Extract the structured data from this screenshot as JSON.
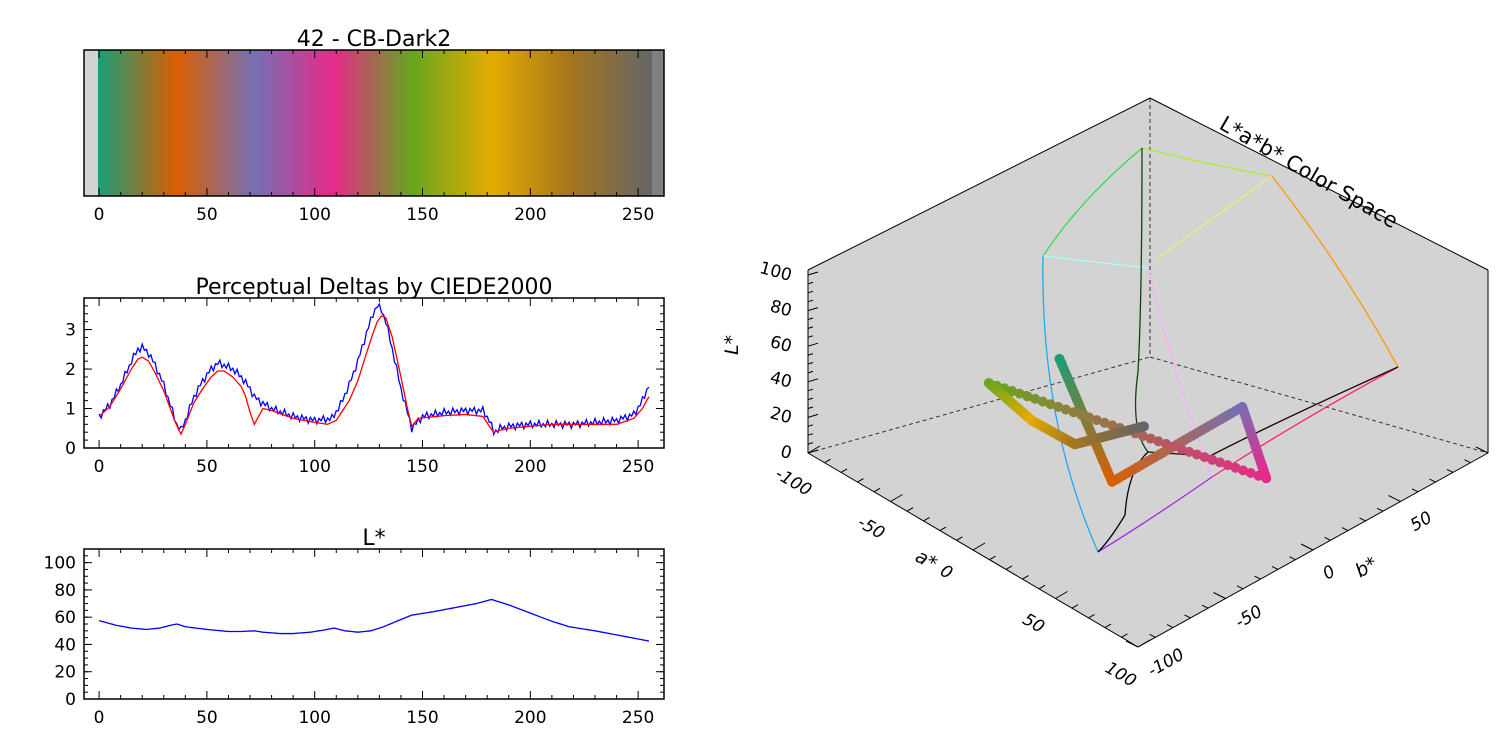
{
  "chart_data": [
    {
      "type": "colorbar",
      "title": "42 - CB-Dark2",
      "xlim": [
        -7,
        262
      ],
      "xticks": [
        0,
        50,
        100,
        150,
        200,
        250
      ],
      "stops": [
        {
          "x": 0,
          "color": "#1b9e77"
        },
        {
          "x": 36,
          "color": "#d95f02"
        },
        {
          "x": 72,
          "color": "#7570b3"
        },
        {
          "x": 109,
          "color": "#e7298a"
        },
        {
          "x": 145,
          "color": "#66a61e"
        },
        {
          "x": 182,
          "color": "#e6ab02"
        },
        {
          "x": 218,
          "color": "#a6761d"
        },
        {
          "x": 255,
          "color": "#666666"
        }
      ],
      "underflow_color": "#d3d3d3",
      "overflow_color": "#808080"
    },
    {
      "type": "line",
      "title": "Perceptual Deltas by CIEDE2000",
      "xlim": [
        -7,
        262
      ],
      "ylim": [
        0,
        3.8
      ],
      "xticks": [
        0,
        50,
        100,
        150,
        200,
        250
      ],
      "yticks": [
        0,
        1,
        2,
        3
      ],
      "series": [
        {
          "color": "#0000ff",
          "noisy": true,
          "x": [
            0,
            5,
            10,
            15,
            18,
            20,
            23,
            26,
            30,
            33,
            36,
            38,
            40,
            44,
            48,
            52,
            55,
            58,
            62,
            66,
            70,
            72,
            74,
            80,
            90,
            100,
            108,
            112,
            116,
            120,
            124,
            127,
            129,
            131,
            133,
            136,
            140,
            143,
            145,
            150,
            160,
            170,
            178,
            181,
            183,
            186,
            190,
            200,
            210,
            220,
            230,
            240,
            248,
            252,
            255
          ],
          "values": [
            0.8,
            1.1,
            1.6,
            2.2,
            2.5,
            2.55,
            2.4,
            2.1,
            1.6,
            1.1,
            0.6,
            0.45,
            0.7,
            1.3,
            1.7,
            2.0,
            2.15,
            2.1,
            2.0,
            1.8,
            1.5,
            1.3,
            1.2,
            1.0,
            0.8,
            0.7,
            0.75,
            1.1,
            1.6,
            2.2,
            2.9,
            3.4,
            3.6,
            3.5,
            3.2,
            2.5,
            1.5,
            0.9,
            0.5,
            0.8,
            0.9,
            0.95,
            0.95,
            0.7,
            0.4,
            0.5,
            0.55,
            0.6,
            0.6,
            0.6,
            0.65,
            0.7,
            0.85,
            1.2,
            1.6
          ]
        },
        {
          "color": "#ff0000",
          "noisy": false,
          "x": [
            0,
            5,
            10,
            15,
            18,
            20,
            23,
            26,
            30,
            33,
            35,
            37,
            38,
            40,
            44,
            48,
            52,
            55,
            58,
            62,
            66,
            68,
            70,
            72,
            74,
            76,
            80,
            90,
            100,
            106,
            110,
            116,
            120,
            124,
            127,
            129,
            131,
            133,
            136,
            140,
            143,
            145,
            148,
            160,
            170,
            178,
            181,
            183,
            186,
            190,
            200,
            210,
            220,
            230,
            240,
            248,
            252,
            255
          ],
          "values": [
            0.8,
            1.05,
            1.5,
            2.0,
            2.25,
            2.3,
            2.2,
            1.9,
            1.45,
            1.0,
            0.7,
            0.45,
            0.35,
            0.6,
            1.15,
            1.5,
            1.8,
            1.95,
            1.95,
            1.8,
            1.55,
            1.3,
            0.9,
            0.6,
            0.8,
            1.0,
            0.95,
            0.75,
            0.65,
            0.6,
            0.7,
            1.2,
            1.7,
            2.4,
            2.9,
            3.2,
            3.35,
            3.3,
            2.8,
            1.8,
            1.0,
            0.55,
            0.75,
            0.82,
            0.85,
            0.8,
            0.55,
            0.4,
            0.45,
            0.5,
            0.55,
            0.6,
            0.6,
            0.6,
            0.6,
            0.75,
            1.0,
            1.3
          ]
        }
      ]
    },
    {
      "type": "line",
      "title": "L*",
      "xlim": [
        -7,
        262
      ],
      "ylim": [
        0,
        110
      ],
      "xticks": [
        0,
        50,
        100,
        150,
        200,
        250
      ],
      "yticks": [
        0,
        20,
        40,
        60,
        80,
        100
      ],
      "series": [
        {
          "color": "#0000ff",
          "x": [
            0,
            8,
            15,
            22,
            28,
            33,
            36,
            40,
            50,
            60,
            66,
            72,
            76,
            84,
            90,
            98,
            104,
            109,
            114,
            120,
            126,
            132,
            138,
            145,
            155,
            165,
            175,
            182,
            190,
            200,
            210,
            218,
            230,
            240,
            250,
            255
          ],
          "values": [
            57.5,
            54,
            52,
            51,
            52,
            54,
            55,
            53,
            51,
            49.5,
            49.5,
            50,
            49,
            48,
            48,
            49,
            50.5,
            52,
            50,
            49,
            50,
            53,
            57,
            61.5,
            64,
            67,
            70,
            73,
            69,
            63,
            57,
            53,
            50,
            47,
            44,
            42.5
          ]
        }
      ]
    },
    {
      "type": "3d-scatter",
      "title": "L*a*b* Color Space",
      "xlabel": "a*",
      "ylabel": "b*",
      "zlabel": "L*",
      "xticks": [
        -100,
        -50,
        0,
        50,
        100
      ],
      "yticks": [
        -100,
        -50,
        0,
        50
      ],
      "zticks": [
        0,
        20,
        40,
        60,
        80,
        100
      ],
      "points": [
        {
          "L": 57.5,
          "a": -45,
          "b": 6,
          "color": "#1b9e77"
        },
        {
          "L": 55,
          "a": 48,
          "b": 65,
          "color": "#d95f02"
        },
        {
          "L": 50,
          "a": 15,
          "b": -43,
          "color": "#7570b3"
        },
        {
          "L": 52,
          "a": 72,
          "b": -2,
          "color": "#e7298a"
        },
        {
          "L": 61.5,
          "a": -37,
          "b": 55,
          "color": "#66a61e"
        },
        {
          "L": 73,
          "a": 12,
          "b": 77,
          "color": "#e6ab02"
        },
        {
          "L": 53,
          "a": 12,
          "b": 52,
          "color": "#a6761d"
        },
        {
          "L": 42.5,
          "a": 0,
          "b": 0,
          "color": "#666666"
        }
      ]
    }
  ]
}
